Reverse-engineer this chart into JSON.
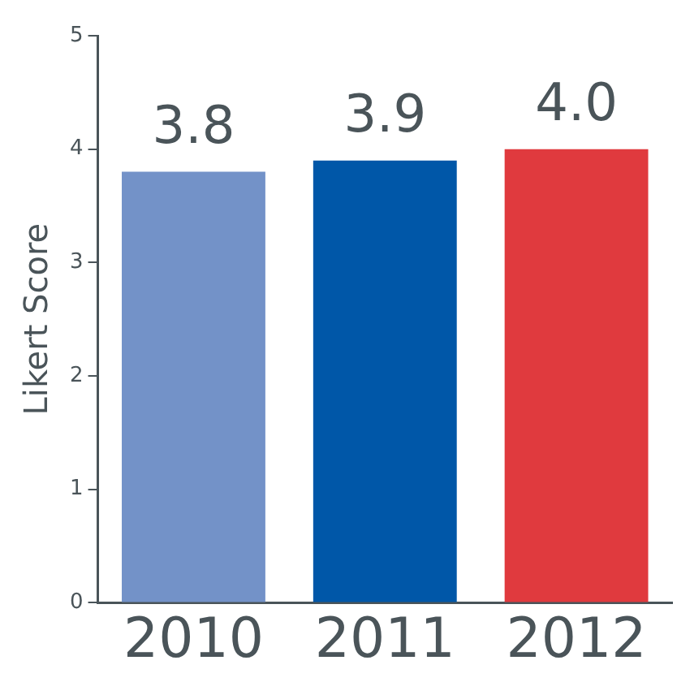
{
  "chart_data": {
    "type": "bar",
    "ylabel": "Likert Score",
    "categories": [
      "2010",
      "2011",
      "2012"
    ],
    "values": [
      3.8,
      3.9,
      4.0
    ],
    "value_labels": [
      "3.8",
      "3.9",
      "4.0"
    ],
    "colors": [
      "#7392c8",
      "#0057a8",
      "#e03a3e"
    ],
    "ylim": [
      0,
      5
    ],
    "yticks": [
      0,
      1,
      2,
      3,
      4,
      5
    ],
    "grid": false,
    "legend": false
  }
}
